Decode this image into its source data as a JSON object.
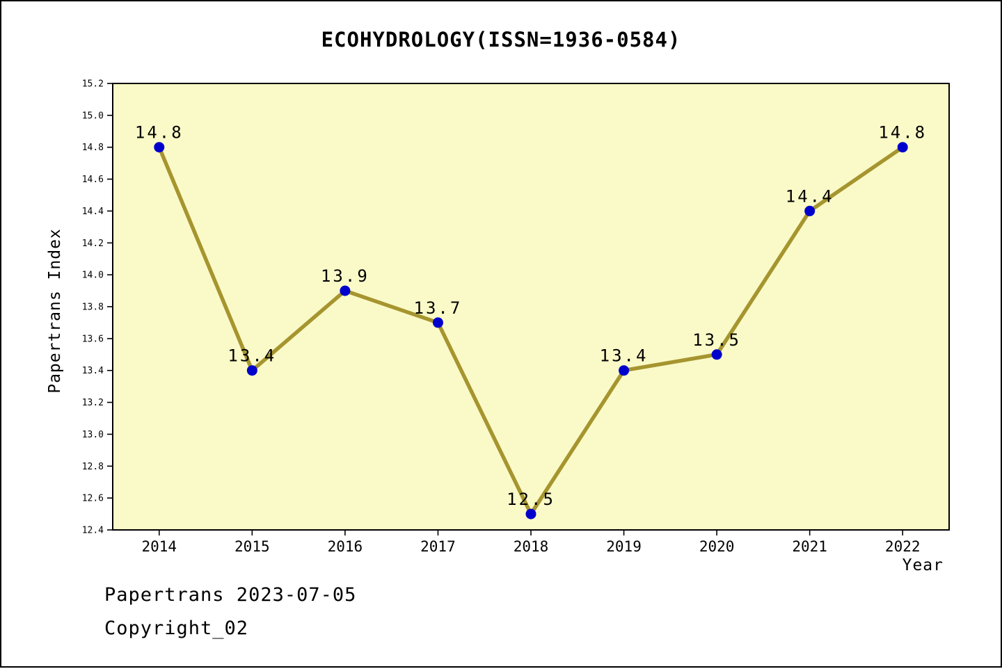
{
  "header": {
    "title": "ECOHYDROLOGY(ISSN=1936-0584)"
  },
  "footer": {
    "line1": "Papertrans 2023-07-05",
    "line2": "Copyright_02"
  },
  "chart_data": {
    "type": "line",
    "title": "ECOHYDROLOGY(ISSN=1936-0584)",
    "xlabel": "Year",
    "ylabel": "Papertrans Index",
    "x": [
      2014,
      2015,
      2016,
      2017,
      2018,
      2019,
      2020,
      2021,
      2022
    ],
    "values": [
      14.8,
      13.4,
      13.9,
      13.7,
      12.5,
      13.4,
      13.5,
      14.4,
      14.8
    ],
    "data_labels": [
      "14.8",
      "13.4",
      "13.9",
      "13.7",
      "12.5",
      "13.4",
      "13.5",
      "14.4",
      "14.8"
    ],
    "ylim": [
      12.4,
      15.2
    ],
    "ytick_step": 0.2,
    "grid": "off",
    "legend": "none",
    "colors": {
      "line": "#A6952F",
      "marker": "#0000CD",
      "plot_background": "#FAFAC8",
      "axis": "#000000",
      "text": "#000000",
      "page_background": "#FFFFFF"
    }
  }
}
